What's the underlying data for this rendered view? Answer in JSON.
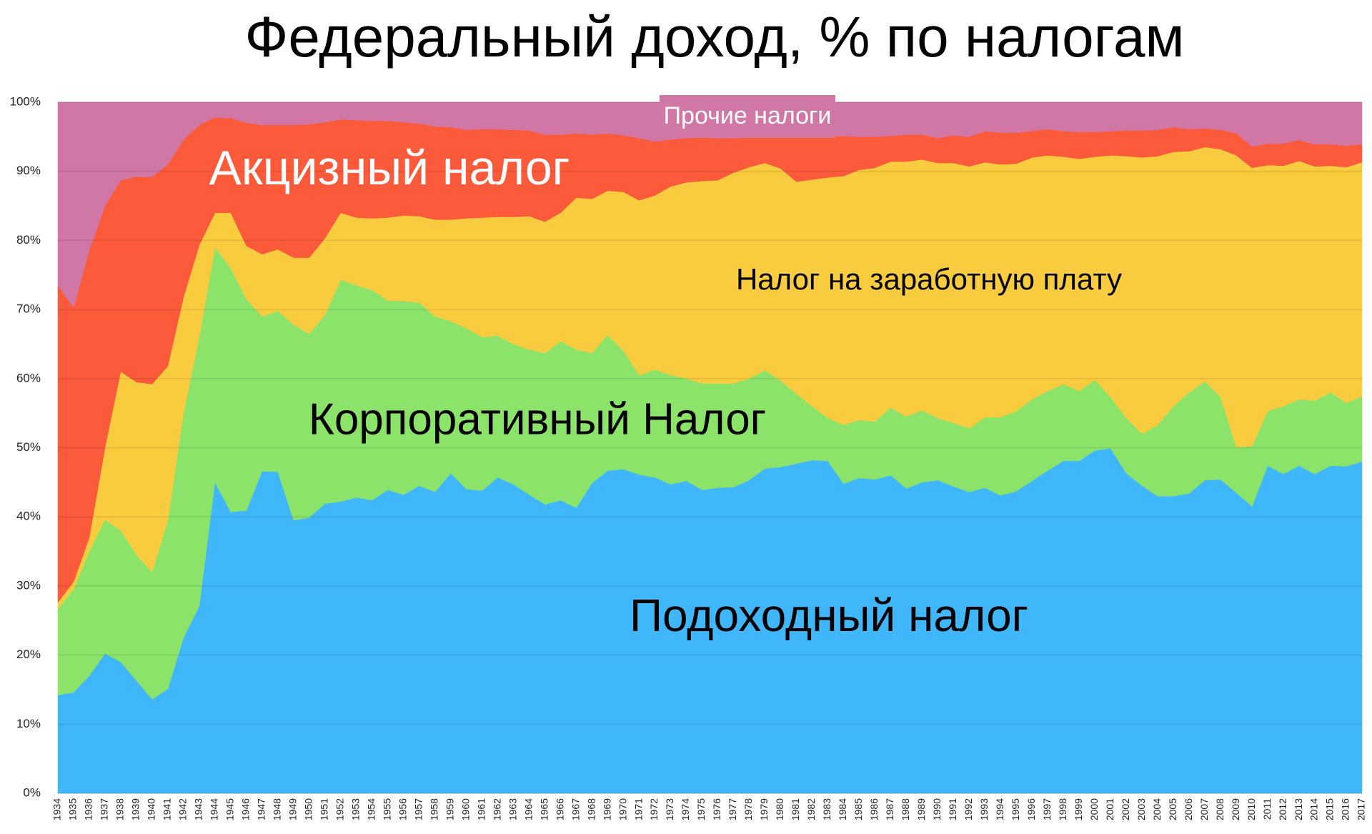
{
  "chart_data": {
    "type": "stacked-area",
    "title": "Федеральный доход, % по налогам",
    "categories": [
      "1934",
      "1935",
      "1936",
      "1937",
      "1938",
      "1939",
      "1940",
      "1941",
      "1942",
      "1943",
      "1944",
      "1945",
      "1946",
      "1947",
      "1948",
      "1949",
      "1950",
      "1951",
      "1952",
      "1953",
      "1954",
      "1955",
      "1956",
      "1957",
      "1958",
      "1959",
      "1960",
      "1961",
      "1962",
      "1963",
      "1964",
      "1965",
      "1966",
      "1967",
      "1968",
      "1969",
      "1970",
      "1971",
      "1972",
      "1973",
      "1974",
      "1975",
      "1976",
      "1977",
      "1978",
      "1979",
      "1980",
      "1981",
      "1982",
      "1983",
      "1984",
      "1985",
      "1986",
      "1987",
      "1988",
      "1989",
      "1990",
      "1991",
      "1992",
      "1993",
      "1994",
      "1995",
      "1996",
      "1997",
      "1998",
      "1999",
      "2000",
      "2001",
      "2002",
      "2003",
      "2004",
      "2005",
      "2006",
      "2007",
      "2008",
      "2009",
      "2010",
      "2011",
      "2012",
      "2013",
      "2014",
      "2015",
      "2016",
      "2017"
    ],
    "series": [
      {
        "name": "Подоходный налог",
        "color": "#40b6fb",
        "values": [
          14.2,
          14.6,
          17,
          20.2,
          19,
          16.3,
          13.6,
          15.1,
          22.5,
          27.1,
          45,
          40.7,
          40.9,
          46.6,
          46.5,
          39.5,
          39.9,
          41.9,
          42.2,
          42.8,
          42.4,
          43.9,
          43.2,
          44.5,
          43.6,
          46.3,
          44,
          43.8,
          45.7,
          44.7,
          43.2,
          41.8,
          42.4,
          41.3,
          44.9,
          46.7,
          46.9,
          46.1,
          45.7,
          44.7,
          45.2,
          43.9,
          44.2,
          44.3,
          45.3,
          47,
          47.2,
          47.7,
          48.2,
          48.1,
          44.8,
          45.6,
          45.4,
          46,
          44.1,
          45,
          45.3,
          44.4,
          43.6,
          44.2,
          43.1,
          43.7,
          45.2,
          46.7,
          48.1,
          48.1,
          49.6,
          49.9,
          46.3,
          44.5,
          43,
          43,
          43.4,
          45.3,
          45.4,
          43.5,
          41.5,
          47.4,
          46.2,
          47.4,
          46.2,
          47.4,
          47.3,
          48
        ]
      },
      {
        "name": "Корпоративный Налог",
        "color": "#8be36a",
        "values": [
          12.5,
          14.9,
          18,
          19.4,
          19,
          18.2,
          18.4,
          24.4,
          32.5,
          38.9,
          34,
          35.3,
          30.6,
          22.4,
          23.3,
          28.3,
          26.6,
          27.3,
          32.1,
          30.7,
          30.4,
          27.4,
          28,
          26.5,
          25.4,
          22,
          23.3,
          22.2,
          20.5,
          20.3,
          21,
          21.9,
          23,
          22.9,
          18.8,
          19.6,
          17.1,
          14.4,
          15.6,
          15.8,
          14.8,
          15.4,
          15.1,
          15,
          14.7,
          14.2,
          12.5,
          10.1,
          7.8,
          6.2,
          8.5,
          8.4,
          8.4,
          9.8,
          10.4,
          10.4,
          9,
          9.2,
          9.2,
          10.2,
          11.3,
          11.6,
          11.8,
          11.5,
          11.1,
          10.1,
          10.2,
          7.4,
          8,
          7.5,
          10.3,
          13,
          14.6,
          14.3,
          11.9,
          6.6,
          8.7,
          7.9,
          9.8,
          9.6,
          10.6,
          10.6,
          9.2,
          9.4
        ]
      },
      {
        "name": "Налог на заработную плату",
        "color": "#f9cb3e",
        "values": [
          0.9,
          1.1,
          2,
          10.4,
          23,
          25,
          27.2,
          22.3,
          16.8,
          13.3,
          5,
          8,
          7.7,
          9,
          8.9,
          9.7,
          11,
          11.1,
          9.7,
          9.8,
          10.4,
          12,
          12.4,
          12.5,
          14,
          14.7,
          15.9,
          17.3,
          17.2,
          18.4,
          19.3,
          19,
          18.6,
          22,
          22.3,
          20.9,
          23,
          25.3,
          25.2,
          27.3,
          28.4,
          29.3,
          29.4,
          30.5,
          30.6,
          30,
          30.7,
          30.7,
          32.8,
          34.8,
          36,
          36.2,
          36.7,
          35.6,
          36.9,
          36.3,
          36.9,
          37.6,
          37.9,
          36.9,
          36.6,
          35.8,
          35,
          34.1,
          32.9,
          33.6,
          32.3,
          35,
          37.9,
          40,
          38.9,
          36.8,
          34.9,
          33.9,
          35.9,
          42.2,
          40.3,
          35.6,
          34.8,
          34.5,
          33.9,
          32.8,
          34.1,
          33.9
        ]
      },
      {
        "name": "Акцизный налог",
        "color": "#fb5a3b",
        "values": [
          45.9,
          39.7,
          41.6,
          35,
          27.7,
          29.7,
          30,
          29.2,
          22.8,
          17.4,
          13.8,
          13.7,
          17.8,
          18.7,
          18,
          19.2,
          19.3,
          16.8,
          13.5,
          14.1,
          14.1,
          14,
          13.5,
          13.4,
          13.5,
          13.4,
          12.8,
          12.8,
          12.7,
          12.6,
          12.4,
          12.6,
          11.3,
          9.3,
          9.3,
          8.3,
          8.2,
          9,
          7.8,
          6.8,
          6.4,
          6.3,
          6.1,
          5,
          4.3,
          3.8,
          4.7,
          6.6,
          6.3,
          6,
          5.8,
          4.8,
          4.5,
          3.7,
          3.9,
          3.6,
          3.6,
          4,
          4.3,
          4.5,
          4.6,
          4.5,
          3.8,
          3.8,
          3.7,
          3.9,
          3.6,
          3.5,
          3.7,
          3.9,
          3.8,
          3.6,
          3.2,
          2.7,
          2.8,
          3.2,
          3.1,
          3.1,
          3.2,
          3,
          3.2,
          3.1,
          3.1,
          2.6
        ]
      },
      {
        "name": "Прочие налоги",
        "color": "#d077a5",
        "values": [
          26.5,
          29.7,
          21.4,
          15,
          11.3,
          10.8,
          10.8,
          9,
          5.4,
          3.3,
          2.2,
          2.3,
          3,
          3.3,
          3.3,
          3.3,
          3.2,
          2.9,
          2.5,
          2.6,
          2.7,
          2.7,
          2.9,
          3.1,
          3.5,
          3.6,
          4,
          3.9,
          3.9,
          4,
          4.1,
          4.7,
          4.7,
          4.5,
          4.7,
          4.5,
          4.8,
          5.2,
          5.7,
          5.4,
          5.2,
          5.1,
          5.2,
          5.2,
          5.1,
          5,
          4.9,
          4.9,
          4.9,
          4.9,
          4.9,
          5,
          5,
          4.9,
          4.7,
          4.7,
          5.2,
          4.8,
          5,
          4.2,
          4.4,
          4.4,
          4.2,
          3.9,
          4.2,
          4.3,
          4.3,
          4.2,
          4.1,
          4.1,
          4,
          3.6,
          3.9,
          3.8,
          4,
          4.5,
          6.4,
          6,
          6,
          5.5,
          6.1,
          6.1,
          6.3,
          6.1
        ]
      }
    ],
    "ylim": [
      0,
      100
    ],
    "yticks": [
      {
        "value": 0,
        "label": "0%"
      },
      {
        "value": 10,
        "label": "10%"
      },
      {
        "value": 20,
        "label": "20%"
      },
      {
        "value": 30,
        "label": "30%"
      },
      {
        "value": 40,
        "label": "40%"
      },
      {
        "value": 50,
        "label": "50%"
      },
      {
        "value": 60,
        "label": "60%"
      },
      {
        "value": 70,
        "label": "70%"
      },
      {
        "value": 80,
        "label": "80%"
      },
      {
        "value": 90,
        "label": "90%"
      },
      {
        "value": 100,
        "label": "100%"
      }
    ],
    "grid": true
  }
}
